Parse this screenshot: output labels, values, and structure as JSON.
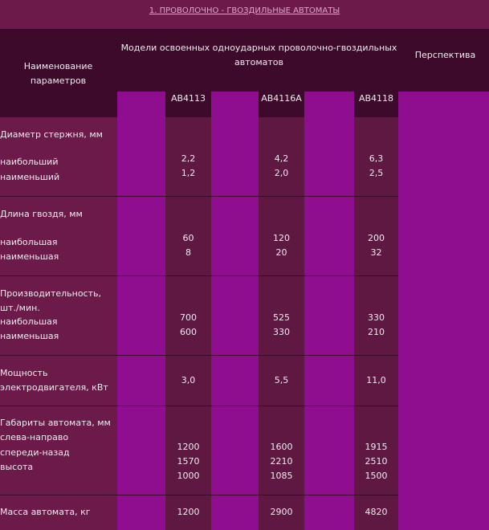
{
  "title": "1. ПРОВОЛОЧНО - ГВОЗДИЛЬНЫЕ АВТОМАТЫ",
  "header": {
    "param_label": "Наименование параметров",
    "models_label": "Модели освоенных одноударных проволочно-гвоздильных автоматов",
    "perspective_label": "Перспектива",
    "models": [
      "АВ4113",
      "АВ4116А",
      "АВ4118"
    ]
  },
  "rows": [
    {
      "name": "Диаметр стержня, мм",
      "sub": [
        "наибольший",
        "наименьший"
      ],
      "values": [
        [
          "2,2",
          "1,2"
        ],
        [
          "4,2",
          "2,0"
        ],
        [
          "6,3",
          "2,5"
        ]
      ]
    },
    {
      "name": "Длина гвоздя, мм",
      "sub": [
        "наибольшая",
        "наименьшая"
      ],
      "values": [
        [
          "60",
          "8"
        ],
        [
          "120",
          "20"
        ],
        [
          "200",
          "32"
        ]
      ]
    },
    {
      "name": "Производительность, шт./мин.",
      "sub": [
        "наибольшая",
        "наименьшая"
      ],
      "values": [
        [
          "700",
          "600"
        ],
        [
          "525",
          "330"
        ],
        [
          "330",
          "210"
        ]
      ]
    },
    {
      "name": "Мощность электродвигателя, кВт",
      "sub": [],
      "values": [
        [
          "3,0"
        ],
        [
          "5,5"
        ],
        [
          "11,0"
        ]
      ]
    },
    {
      "name": "Габариты автомата, мм",
      "sub": [
        "слева-направо",
        "спереди-назад",
        "высота"
      ],
      "values": [
        [
          "1200",
          "1570",
          "1000"
        ],
        [
          "1600",
          "2210",
          "1085"
        ],
        [
          "1915",
          "2510",
          "1500"
        ]
      ]
    },
    {
      "name": "Масса автомата, кг",
      "sub": [],
      "values": [
        [
          "1200"
        ],
        [
          "2900"
        ],
        [
          "4820"
        ]
      ]
    }
  ]
}
